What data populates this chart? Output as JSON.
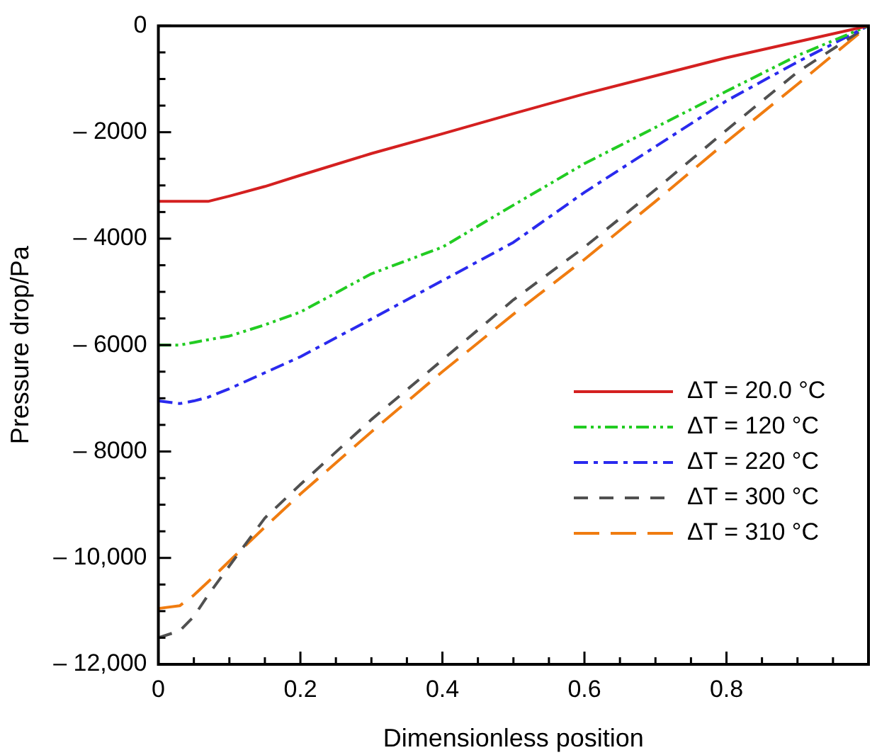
{
  "chart_data": {
    "type": "line",
    "xlabel": "Dimensionless position",
    "ylabel": "Pressure drop/Pa",
    "x": [
      0,
      0.03,
      0.05,
      0.07,
      0.1,
      0.15,
      0.2,
      0.3,
      0.4,
      0.5,
      0.6,
      0.7,
      0.8,
      0.9,
      1.0
    ],
    "xlim": [
      0,
      1
    ],
    "xticks": [
      0,
      {
        "value": 0.05,
        "label": null
      },
      {
        "value": 0.1,
        "label": null
      },
      {
        "value": 0.15,
        "label": null
      },
      0.2,
      {
        "value": 0.25,
        "label": null
      },
      {
        "value": 0.3,
        "label": null
      },
      {
        "value": 0.35,
        "label": null
      },
      0.4,
      {
        "value": 0.45,
        "label": null
      },
      {
        "value": 0.5,
        "label": null
      },
      {
        "value": 0.55,
        "label": null
      },
      0.6,
      {
        "value": 0.65,
        "label": null
      },
      {
        "value": 0.7,
        "label": null
      },
      {
        "value": 0.75,
        "label": null
      },
      0.8,
      {
        "value": 0.85,
        "label": null
      },
      {
        "value": 0.9,
        "label": null
      },
      {
        "value": 0.95,
        "label": null
      }
    ],
    "ylim": [
      -12000,
      0
    ],
    "yticks": [
      0,
      {
        "value": -500,
        "label": null
      },
      {
        "value": -1000,
        "label": null
      },
      {
        "value": -1500,
        "label": null
      },
      {
        "value": -2000,
        "label": "– 2000"
      },
      {
        "value": -2500,
        "label": null
      },
      {
        "value": -3000,
        "label": null
      },
      {
        "value": -3500,
        "label": null
      },
      {
        "value": -4000,
        "label": "– 4000"
      },
      {
        "value": -4500,
        "label": null
      },
      {
        "value": -5000,
        "label": null
      },
      {
        "value": -5500,
        "label": null
      },
      {
        "value": -6000,
        "label": "– 6000"
      },
      {
        "value": -6500,
        "label": null
      },
      {
        "value": -7000,
        "label": null
      },
      {
        "value": -7500,
        "label": null
      },
      {
        "value": -8000,
        "label": "– 8000"
      },
      {
        "value": -8500,
        "label": null
      },
      {
        "value": -9000,
        "label": null
      },
      {
        "value": -9500,
        "label": null
      },
      {
        "value": -10000,
        "label": "– 10,000"
      },
      {
        "value": -10500,
        "label": null
      },
      {
        "value": -11000,
        "label": null
      },
      {
        "value": -11500,
        "label": null
      },
      {
        "value": -12000,
        "label": "– 12,000"
      }
    ],
    "grid": false,
    "legend": "bottom right",
    "marker": "none",
    "series": [
      {
        "name": "ΔT = 20.0 °C",
        "color": "#d42020",
        "line_style": "solid",
        "values": [
          -3300,
          -3300,
          -3300,
          -3300,
          -3200,
          -3020,
          -2810,
          -2400,
          -2030,
          -1650,
          -1280,
          -940,
          -600,
          -300,
          0
        ]
      },
      {
        "name": "ΔT = 120 °C",
        "color": "#22cc22",
        "line_style": "dashed",
        "values": [
          -6000,
          -6000,
          -5950,
          -5900,
          -5830,
          -5620,
          -5380,
          -4660,
          -4160,
          -3370,
          -2590,
          -1910,
          -1230,
          -560,
          0
        ]
      },
      {
        "name": "ΔT = 220 °C",
        "color": "#2a2aee",
        "line_style": "dashed",
        "values": [
          -7050,
          -7100,
          -7050,
          -6980,
          -6820,
          -6520,
          -6220,
          -5510,
          -4790,
          -4070,
          -3130,
          -2270,
          -1410,
          -680,
          0
        ]
      },
      {
        "name": "ΔT = 300 °C",
        "color": "#505050",
        "line_style": "dashed",
        "values": [
          -11500,
          -11370,
          -11100,
          -10700,
          -10150,
          -9250,
          -8620,
          -7400,
          -6280,
          -5150,
          -4160,
          -3080,
          -1960,
          -870,
          0
        ]
      },
      {
        "name": "ΔT = 310 °C",
        "color": "#f07c10",
        "line_style": "dashed",
        "values": [
          -10950,
          -10900,
          -10700,
          -10450,
          -10060,
          -9420,
          -8800,
          -7630,
          -6500,
          -5420,
          -4390,
          -3300,
          -2180,
          -1100,
          0
        ]
      }
    ]
  }
}
